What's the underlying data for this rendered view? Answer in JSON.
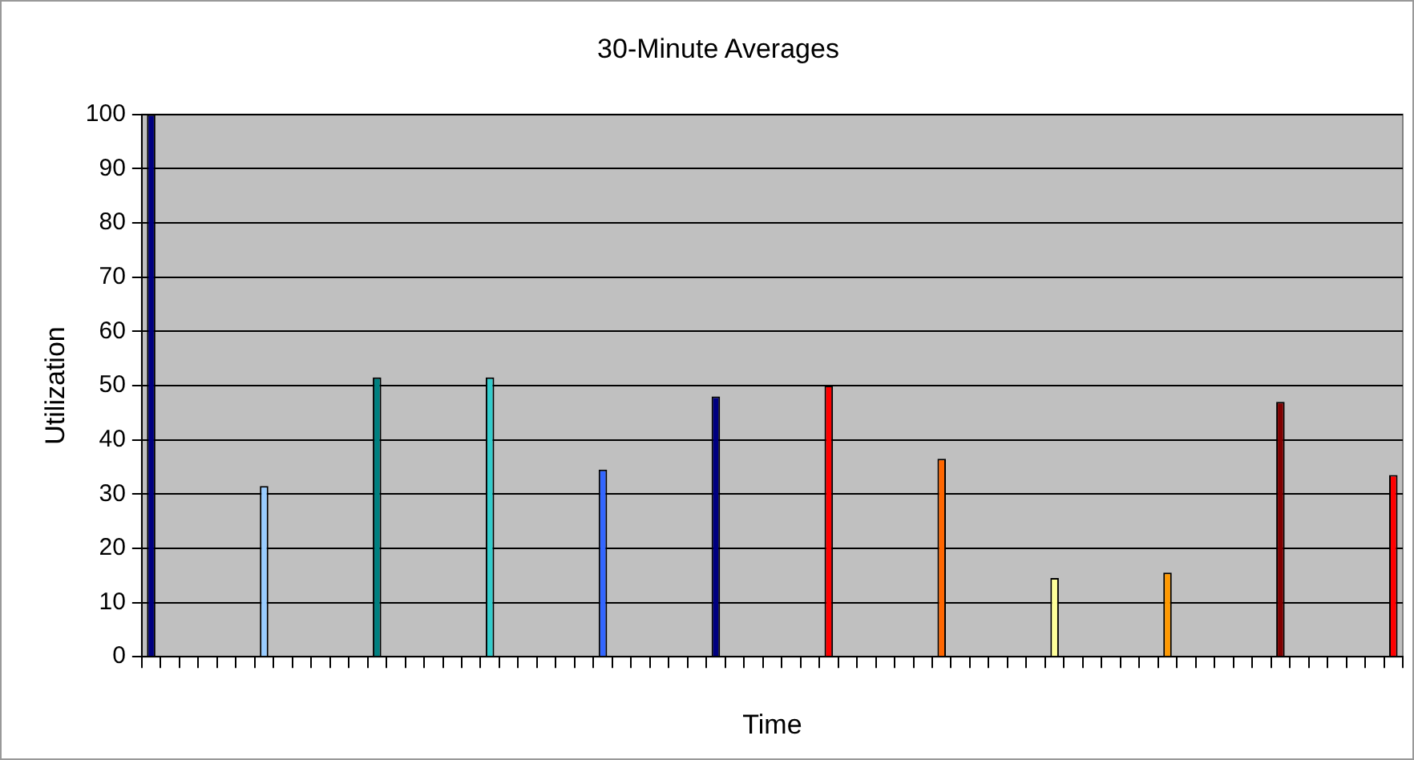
{
  "chart_data": {
    "type": "bar",
    "title": "30-Minute Averages",
    "xlabel": "Time",
    "ylabel": "Utilization",
    "categories": [
      null,
      null,
      null,
      null,
      null,
      null,
      null,
      null,
      null,
      null,
      null,
      null,
      null,
      null,
      null,
      null,
      null,
      null,
      null,
      null,
      null,
      null,
      null,
      null,
      null,
      null,
      null,
      null,
      null,
      null,
      null,
      null,
      null,
      null,
      null,
      null,
      null,
      null,
      null,
      null,
      null,
      null,
      null,
      null,
      null,
      null,
      null,
      null,
      null,
      null,
      null,
      null,
      null,
      null,
      null,
      null,
      null,
      null,
      null,
      null,
      null,
      null,
      null,
      null,
      null,
      null,
      null
    ],
    "values": [
      100,
      null,
      null,
      null,
      null,
      null,
      31.5,
      null,
      null,
      null,
      null,
      null,
      51.5,
      null,
      null,
      null,
      null,
      null,
      51.5,
      null,
      null,
      null,
      null,
      null,
      34.5,
      null,
      null,
      null,
      null,
      null,
      48,
      null,
      null,
      null,
      null,
      null,
      50,
      null,
      null,
      null,
      null,
      null,
      36.5,
      null,
      null,
      null,
      null,
      null,
      14.5,
      null,
      null,
      null,
      null,
      null,
      15.5,
      null,
      null,
      null,
      null,
      null,
      47,
      null,
      null,
      null,
      null,
      null,
      33.5
    ],
    "colors": [
      "#000080",
      null,
      null,
      null,
      null,
      null,
      "#99ccff",
      null,
      null,
      null,
      null,
      null,
      "#008080",
      null,
      null,
      null,
      null,
      null,
      "#33cccc",
      null,
      null,
      null,
      null,
      null,
      "#3366ff",
      null,
      null,
      null,
      null,
      null,
      "#000080",
      null,
      null,
      null,
      null,
      null,
      "#ff0000",
      null,
      null,
      null,
      null,
      null,
      "#ff6600",
      null,
      null,
      null,
      null,
      null,
      "#ffff99",
      null,
      null,
      null,
      null,
      null,
      "#ff9900",
      null,
      null,
      null,
      null,
      null,
      "#800000",
      null,
      null,
      null,
      null,
      null,
      "#ff0000"
    ],
    "ylim": [
      0,
      100
    ],
    "yticks": [
      0,
      10,
      20,
      30,
      40,
      50,
      60,
      70,
      80,
      90,
      100
    ],
    "grid": "y",
    "tick_labels": "y"
  }
}
